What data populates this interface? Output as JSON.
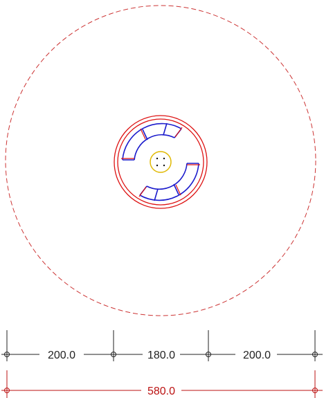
{
  "drawing": {
    "colors": {
      "boundary_dashed": "#cc3333",
      "tank_outline": "#dd1111",
      "module_blue": "#1a1acc",
      "center_yellow": "#e0b800",
      "dimension_black": "#222222",
      "dimension_red": "#bb1111"
    },
    "dimensions": {
      "segment_left": "200.0",
      "segment_middle": "180.0",
      "segment_right": "200.0",
      "overall": "580.0"
    }
  }
}
